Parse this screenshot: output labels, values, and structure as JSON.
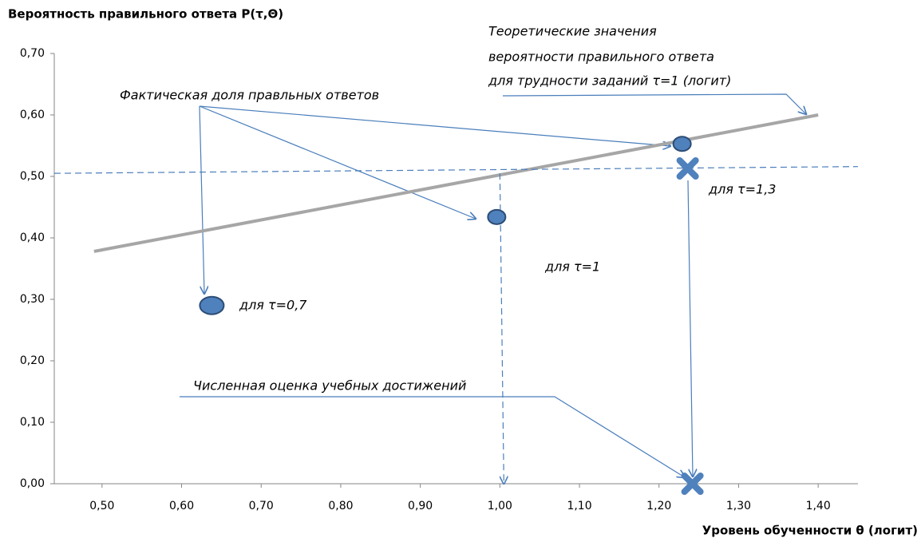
{
  "chart_data": {
    "type": "scatter",
    "title": "Вероятность правильного ответа  P(τ,Θ)",
    "x_label": "Уровень обученности  θ (логит)",
    "xlim": [
      0.44,
      1.45
    ],
    "ylim": [
      0,
      0.7
    ],
    "xticks": [
      {
        "value": 0.5,
        "label": "0,50"
      },
      {
        "value": 0.6,
        "label": "0,60"
      },
      {
        "value": 0.7,
        "label": "0,70"
      },
      {
        "value": 0.8,
        "label": "0,80"
      },
      {
        "value": 0.9,
        "label": "0,90"
      },
      {
        "value": 1.0,
        "label": "1,00"
      },
      {
        "value": 1.1,
        "label": "1,10"
      },
      {
        "value": 1.2,
        "label": "1,20"
      },
      {
        "value": 1.3,
        "label": "1,30"
      },
      {
        "value": 1.4,
        "label": "1,40"
      }
    ],
    "yticks": [
      {
        "value": 0,
        "label": "0,00"
      },
      {
        "value": 0.1,
        "label": "0,10"
      },
      {
        "value": 0.2,
        "label": "0,20"
      },
      {
        "value": 0.3,
        "label": "0,30"
      },
      {
        "value": 0.4,
        "label": "0,40"
      },
      {
        "value": 0.5,
        "label": "0,50"
      },
      {
        "value": 0.6,
        "label": "0,60"
      },
      {
        "value": 0.7,
        "label": "0,70"
      }
    ],
    "series": [
      {
        "mark": "line",
        "color": "#a6a6a6",
        "x": [
          0.49,
          1.4
        ],
        "values": [
          0.378,
          0.6
        ]
      },
      {
        "mark": "line",
        "dashed": true,
        "color": "#4a7ebb",
        "x": [
          0.44,
          1.45
        ],
        "values": [
          0.505,
          0.516
        ]
      },
      {
        "mark": "line",
        "dashed": true,
        "arrow": true,
        "color": "#4a7ebb",
        "x": [
          1.0,
          1.005
        ],
        "values": [
          0.505,
          0
        ]
      },
      {
        "mark": "circle",
        "color": "#4f81bd",
        "x": [
          0.638,
          0.996,
          1.229
        ],
        "values": [
          0.29,
          0.434,
          0.553
        ]
      },
      {
        "mark": "cross",
        "color": "#4f81bd",
        "x": [
          1.236,
          1.242
        ],
        "values": [
          0.513,
          0
        ]
      }
    ],
    "annotations": [
      "Теоретические значения",
      "вероятности  правильного ответа",
      "для трудности заданий τ=1 (логит)",
      "Фактическая доля правльных ответов",
      "для  τ=1,3",
      "для  τ=1",
      "для  τ=0,7",
      "Численная оценка учебных достижений"
    ]
  }
}
